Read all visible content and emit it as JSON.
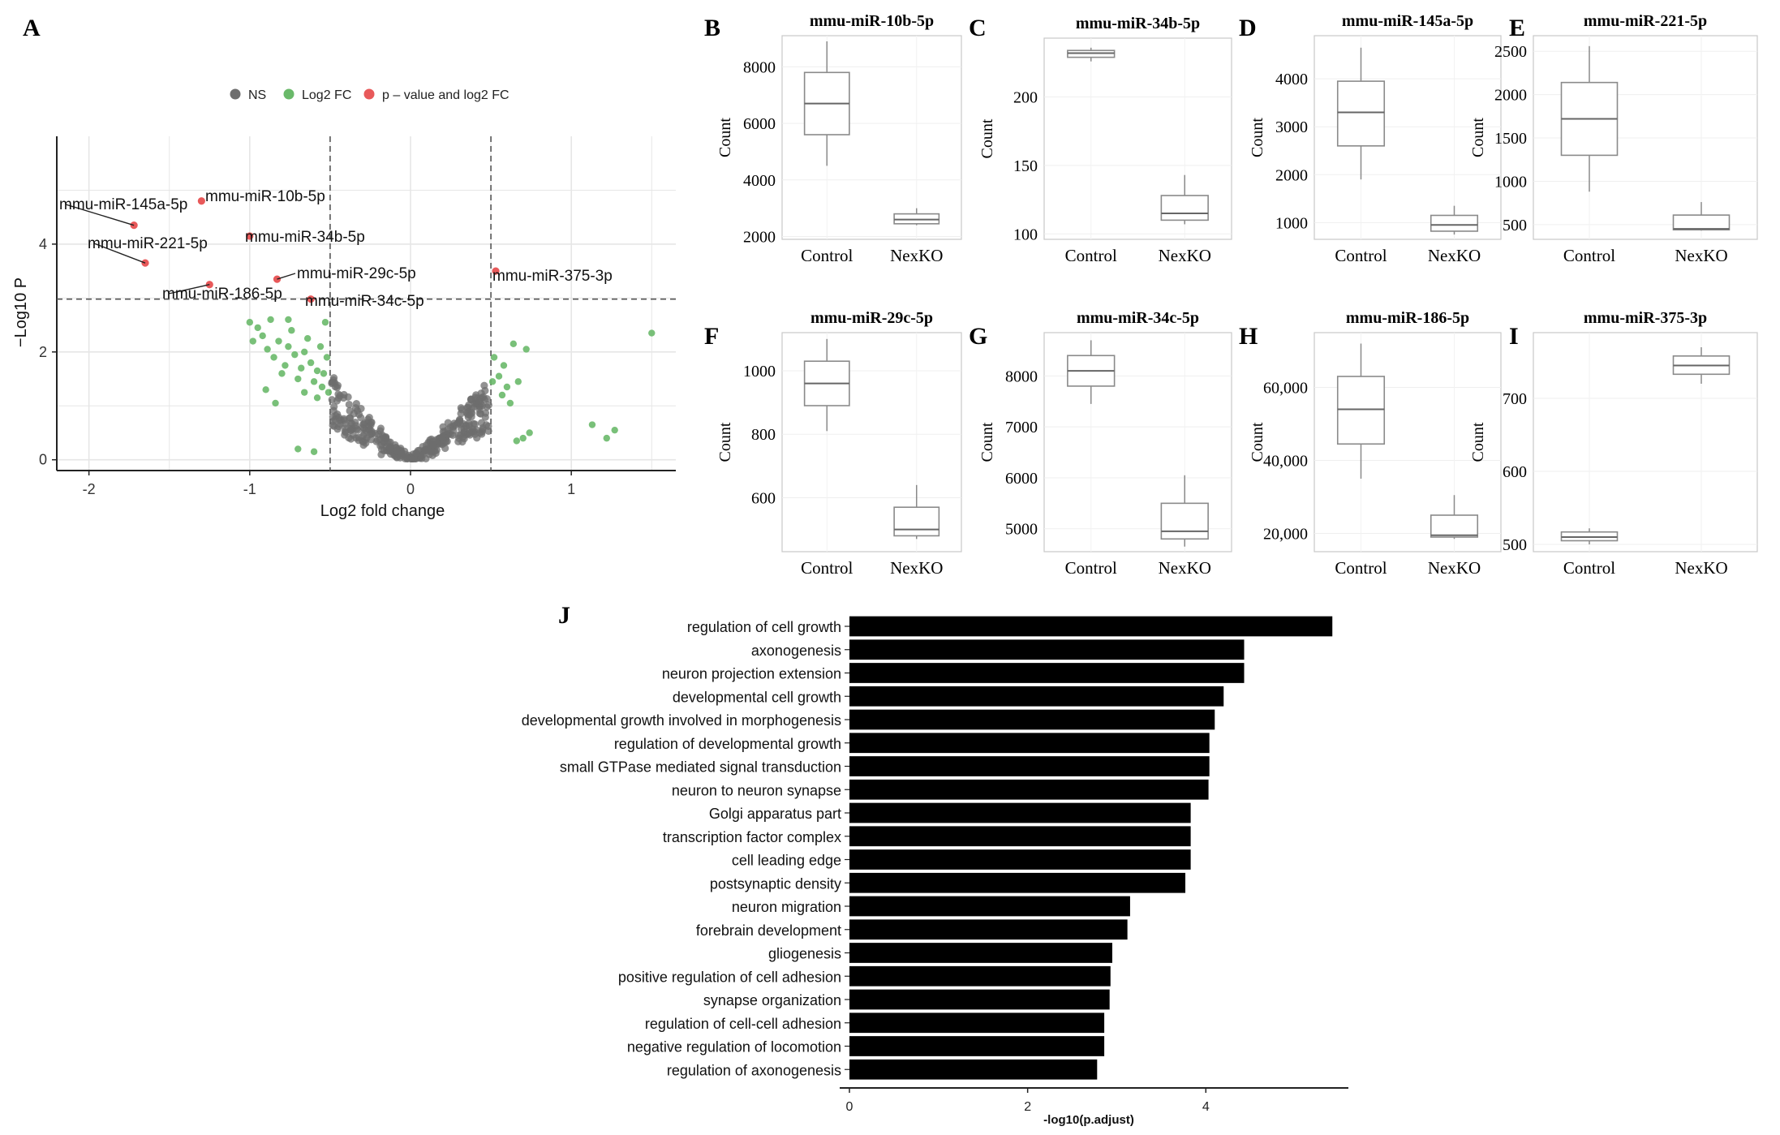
{
  "chart_data": [
    {
      "panel": "A",
      "type": "scatter",
      "subtype": "volcano",
      "xlabel": "Log2 fold change",
      "ylabel": "−Log10 P",
      "xlim": [
        -2.2,
        1.65
      ],
      "ylim": [
        -0.2,
        6.0
      ],
      "xticks": [
        "-2",
        "-1",
        "0",
        "1"
      ],
      "yticks": [
        "0",
        "2",
        "4"
      ],
      "grid": true,
      "legend_position": "top",
      "legend": [
        {
          "label": "NS",
          "color": "#6e6e6e"
        },
        {
          "label": "Log2 FC",
          "color": "#6ab96a"
        },
        {
          "label": "p – value and log2 FC",
          "color": "#e8595a"
        }
      ],
      "thresholds": {
        "x": [
          -0.5,
          0.5
        ],
        "y": 2.98
      },
      "labeled_points": [
        {
          "label": "mmu-miR-10b-5p",
          "x": -1.3,
          "y": 4.8
        },
        {
          "label": "mmu-miR-145a-5p",
          "x": -1.72,
          "y": 4.35
        },
        {
          "label": "mmu-miR-34b-5p",
          "x": -1.0,
          "y": 4.15
        },
        {
          "label": "mmu-miR-221-5p",
          "x": -1.65,
          "y": 3.65
        },
        {
          "label": "mmu-miR-29c-5p",
          "x": -0.83,
          "y": 3.35
        },
        {
          "label": "mmu-miR-186-5p",
          "x": -1.25,
          "y": 3.25
        },
        {
          "label": "mmu-miR-34c-5p",
          "x": -0.62,
          "y": 2.98
        },
        {
          "label": "mmu-miR-375-3p",
          "x": 0.53,
          "y": 3.5
        }
      ],
      "fc_points": [
        [
          -1.0,
          2.55
        ],
        [
          -0.98,
          2.2
        ],
        [
          -0.95,
          2.45
        ],
        [
          -0.92,
          2.3
        ],
        [
          -0.89,
          2.05
        ],
        [
          -0.87,
          2.6
        ],
        [
          -0.85,
          1.9
        ],
        [
          -0.82,
          2.2
        ],
        [
          -0.8,
          1.6
        ],
        [
          -0.78,
          1.75
        ],
        [
          -0.76,
          2.1
        ],
        [
          -0.74,
          2.4
        ],
        [
          -0.72,
          1.95
        ],
        [
          -0.7,
          1.5
        ],
        [
          -0.68,
          1.7
        ],
        [
          -0.66,
          2.0
        ],
        [
          -0.64,
          2.25
        ],
        [
          -0.62,
          1.8
        ],
        [
          -0.6,
          1.45
        ],
        [
          -0.58,
          1.65
        ],
        [
          -0.56,
          2.1
        ],
        [
          -0.55,
          1.35
        ],
        [
          -0.54,
          1.6
        ],
        [
          -0.53,
          2.55
        ],
        [
          -0.52,
          1.9
        ],
        [
          -0.51,
          1.25
        ],
        [
          -0.84,
          1.05
        ],
        [
          -0.9,
          1.3
        ],
        [
          -0.7,
          0.2
        ],
        [
          -0.6,
          0.15
        ],
        [
          -0.76,
          2.6
        ],
        [
          -0.66,
          1.25
        ],
        [
          -0.58,
          1.15
        ],
        [
          0.51,
          1.45
        ],
        [
          0.52,
          1.9
        ],
        [
          0.55,
          1.55
        ],
        [
          0.57,
          1.2
        ],
        [
          0.58,
          1.75
        ],
        [
          0.6,
          1.35
        ],
        [
          0.62,
          1.05
        ],
        [
          0.64,
          2.15
        ],
        [
          0.67,
          1.45
        ],
        [
          0.72,
          2.05
        ],
        [
          0.66,
          0.35
        ],
        [
          0.7,
          0.4
        ],
        [
          0.74,
          0.5
        ],
        [
          1.13,
          0.65
        ],
        [
          1.22,
          0.4
        ],
        [
          1.27,
          0.55
        ],
        [
          1.5,
          2.35
        ]
      ]
    },
    {
      "panel": "B",
      "type": "box",
      "title": "mmu-miR-10b-5p",
      "ylabel": "Count",
      "categories": [
        "Control",
        "NexKO"
      ],
      "ylim": [
        1900,
        9100
      ],
      "yticks": [
        "2000",
        "4000",
        "6000",
        "8000"
      ],
      "boxes": [
        {
          "min": 4500,
          "q1": 5600,
          "median": 6700,
          "q3": 7800,
          "max": 8900
        },
        {
          "min": 2400,
          "q1": 2450,
          "median": 2600,
          "q3": 2800,
          "max": 3000
        }
      ]
    },
    {
      "panel": "C",
      "type": "box",
      "title": "mmu-miR-34b-5p",
      "ylabel": "Count",
      "categories": [
        "Control",
        "NexKO"
      ],
      "ylim": [
        96,
        243
      ],
      "yticks": [
        "100",
        "150",
        "200"
      ],
      "boxes": [
        {
          "min": 226,
          "q1": 229,
          "median": 232,
          "q3": 234,
          "max": 236
        },
        {
          "min": 107,
          "q1": 110,
          "median": 115,
          "q3": 128,
          "max": 143
        }
      ]
    },
    {
      "panel": "D",
      "type": "box",
      "title": "mmu-miR-145a-5p",
      "ylabel": "Count",
      "categories": [
        "Control",
        "NexKO"
      ],
      "ylim": [
        650,
        4900
      ],
      "yticks": [
        "1000",
        "2000",
        "3000",
        "4000"
      ],
      "boxes": [
        {
          "min": 1900,
          "q1": 2600,
          "median": 3300,
          "q3": 3950,
          "max": 4650
        },
        {
          "min": 750,
          "q1": 820,
          "median": 950,
          "q3": 1150,
          "max": 1350
        }
      ]
    },
    {
      "panel": "E",
      "type": "box",
      "title": "mmu-miR-221-5p",
      "ylabel": "Count",
      "categories": [
        "Control",
        "NexKO"
      ],
      "ylim": [
        330,
        2680
      ],
      "yticks": [
        "500",
        "1000",
        "1500",
        "2000",
        "2500"
      ],
      "boxes": [
        {
          "min": 880,
          "q1": 1300,
          "median": 1720,
          "q3": 2140,
          "max": 2560
        },
        {
          "min": 430,
          "q1": 440,
          "median": 450,
          "q3": 610,
          "max": 760
        }
      ]
    },
    {
      "panel": "F",
      "type": "box",
      "title": "mmu-miR-29c-5p",
      "ylabel": "Count",
      "categories": [
        "Control",
        "NexKO"
      ],
      "ylim": [
        430,
        1120
      ],
      "yticks": [
        "600",
        "800",
        "1000"
      ],
      "boxes": [
        {
          "min": 810,
          "q1": 890,
          "median": 960,
          "q3": 1030,
          "max": 1100
        },
        {
          "min": 470,
          "q1": 480,
          "median": 500,
          "q3": 570,
          "max": 640
        }
      ]
    },
    {
      "panel": "G",
      "type": "box",
      "title": "mmu-miR-34c-5p",
      "ylabel": "Count",
      "categories": [
        "Control",
        "NexKO"
      ],
      "ylim": [
        4550,
        8850
      ],
      "yticks": [
        "5000",
        "6000",
        "7000",
        "8000"
      ],
      "boxes": [
        {
          "min": 7450,
          "q1": 7800,
          "median": 8100,
          "q3": 8400,
          "max": 8700
        },
        {
          "min": 4650,
          "q1": 4800,
          "median": 4950,
          "q3": 5500,
          "max": 6050
        }
      ]
    },
    {
      "panel": "H",
      "type": "box",
      "title": "mmu-miR-186-5p",
      "ylabel": "Count",
      "categories": [
        "Control",
        "NexKO"
      ],
      "ylim": [
        15000,
        75000
      ],
      "yticks": [
        "20,000",
        "40,000",
        "60,000"
      ],
      "boxes": [
        {
          "min": 35000,
          "q1": 44500,
          "median": 54000,
          "q3": 63000,
          "max": 72000
        },
        {
          "min": 18500,
          "q1": 19000,
          "median": 19500,
          "q3": 25000,
          "max": 30500
        }
      ]
    },
    {
      "panel": "I",
      "type": "box",
      "title": "mmu-miR-375-3p",
      "ylabel": "Count",
      "categories": [
        "Control",
        "NexKO"
      ],
      "ylim": [
        490,
        790
      ],
      "yticks": [
        "500",
        "600",
        "700"
      ],
      "boxes": [
        {
          "min": 500,
          "q1": 505,
          "median": 510,
          "q3": 517,
          "max": 522
        },
        {
          "min": 720,
          "q1": 733,
          "median": 745,
          "q3": 758,
          "max": 770
        }
      ]
    },
    {
      "panel": "J",
      "type": "bar",
      "orientation": "horizontal",
      "xlabel": "-log10(p.adjust)",
      "xlim": [
        0,
        5.6
      ],
      "xticks": [
        "0",
        "2",
        "4"
      ],
      "categories": [
        "regulation of cell growth",
        "axonogenesis",
        "neuron projection extension",
        "developmental cell growth",
        "developmental growth involved in morphogenesis",
        "regulation of developmental growth",
        "small GTPase mediated signal transduction",
        "neuron to neuron synapse",
        "Golgi apparatus part",
        "transcription factor complex",
        "cell leading edge",
        "postsynaptic density",
        "neuron migration",
        "forebrain development",
        "gliogenesis",
        "positive regulation of cell adhesion",
        "synapse organization",
        "regulation of cell-cell adhesion",
        "negative regulation of locomotion",
        "regulation of axonogenesis"
      ],
      "values": [
        5.42,
        4.43,
        4.43,
        4.2,
        4.1,
        4.04,
        4.04,
        4.03,
        3.83,
        3.83,
        3.83,
        3.77,
        3.15,
        3.12,
        2.95,
        2.93,
        2.92,
        2.86,
        2.86,
        2.78
      ]
    }
  ],
  "panel_letters": [
    "A",
    "B",
    "C",
    "D",
    "E",
    "F",
    "G",
    "H",
    "I",
    "J"
  ],
  "colors": {
    "ns": "#6e6e6e",
    "fc": "#6ab96a",
    "sig": "#e8595a",
    "bar": "#000000",
    "box": "#8a8a8a",
    "grid": "#e6e6e6"
  }
}
